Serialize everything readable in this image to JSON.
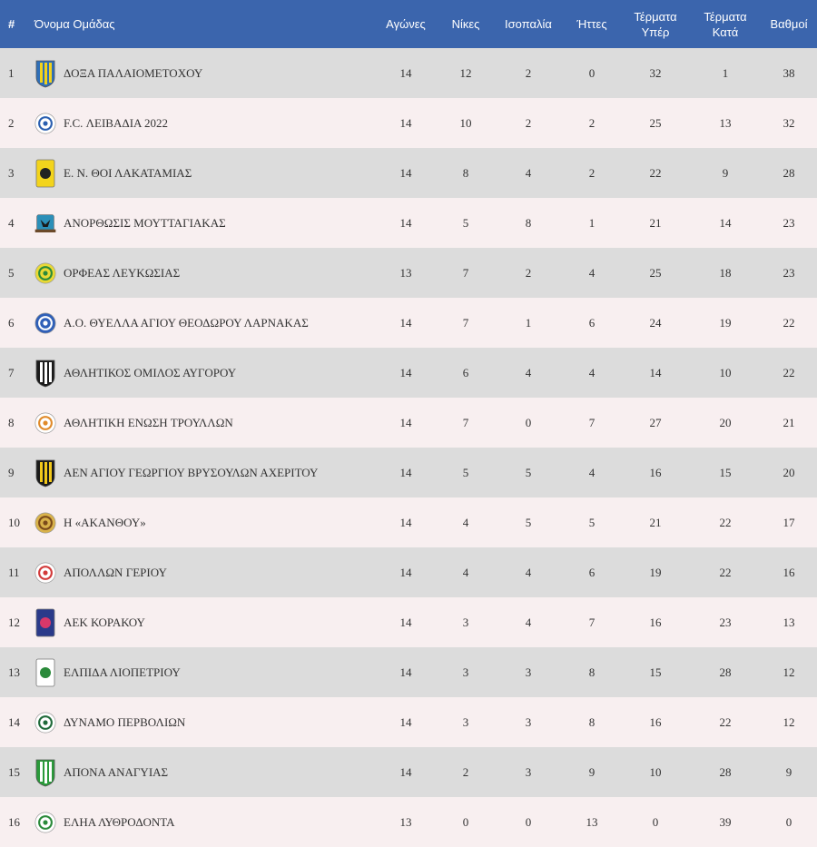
{
  "headers": {
    "rank": "#",
    "team": "Όνομα Ομάδας",
    "played": "Αγώνες",
    "wins": "Νίκες",
    "draws": "Ισοπαλία",
    "losses": "Ήττες",
    "goals_for_1": "Τέρματα",
    "goals_for_2": "Υπέρ",
    "goals_against_1": "Τέρματα",
    "goals_against_2": "Κατά",
    "points": "Βαθμοί"
  },
  "rows": [
    {
      "rank": "1",
      "team": "ΔΟΞΑ ΠΑΛΑΙΟΜΕΤΟΧΟΥ",
      "played": "14",
      "wins": "12",
      "draws": "2",
      "losses": "0",
      "gf": "32",
      "ga": "1",
      "pts": "38",
      "logo": "shield-stripes-icon",
      "c1": "#2f6fb8",
      "c2": "#f2d21b"
    },
    {
      "rank": "2",
      "team": "F.C. ΛΕΙΒΑΔΙΑ 2022",
      "played": "14",
      "wins": "10",
      "draws": "2",
      "losses": "2",
      "gf": "25",
      "ga": "13",
      "pts": "32",
      "logo": "round-crest-icon",
      "c1": "#ffffff",
      "c2": "#2a5fb0"
    },
    {
      "rank": "3",
      "team": "Ε. Ν. ΘΟΙ ΛΑΚΑΤΑΜΙΑΣ",
      "played": "14",
      "wins": "8",
      "draws": "4",
      "losses": "2",
      "gf": "22",
      "ga": "9",
      "pts": "28",
      "logo": "badge-icon",
      "c1": "#f3d41c",
      "c2": "#222222"
    },
    {
      "rank": "4",
      "team": "ΑΝΟΡΘΩΣΙΣ ΜΟΥΤΤΑΓΙΑΚΑΣ",
      "played": "14",
      "wins": "5",
      "draws": "8",
      "losses": "1",
      "gf": "21",
      "ga": "14",
      "pts": "23",
      "logo": "eagle-crest-icon",
      "c1": "#2b8fb8",
      "c2": "#1a1a1a"
    },
    {
      "rank": "5",
      "team": "ΟΡΦΕΑΣ ΛΕΥΚΩΣΙΑΣ",
      "played": "13",
      "wins": "7",
      "draws": "2",
      "losses": "4",
      "gf": "25",
      "ga": "18",
      "pts": "23",
      "logo": "round-crest-icon",
      "c1": "#e9d935",
      "c2": "#2a8a3a"
    },
    {
      "rank": "6",
      "team": "Α.Ο. ΘΥΕΛΛΑ ΑΓΙΟΥ ΘΕΟΔΩΡΟΥ ΛΑΡΝΑΚΑΣ",
      "played": "14",
      "wins": "7",
      "draws": "1",
      "losses": "6",
      "gf": "24",
      "ga": "19",
      "pts": "22",
      "logo": "round-crest-icon",
      "c1": "#2f5fb8",
      "c2": "#ffffff"
    },
    {
      "rank": "7",
      "team": "ΑΘΛΗΤΙΚΟΣ ΟΜΙΛΟΣ ΑΥΓΟΡΟΥ",
      "played": "14",
      "wins": "6",
      "draws": "4",
      "losses": "4",
      "gf": "14",
      "ga": "10",
      "pts": "22",
      "logo": "shield-stripes-icon",
      "c1": "#1a1a1a",
      "c2": "#ffffff"
    },
    {
      "rank": "8",
      "team": "ΑΘΛΗΤΙΚΗ ΕΝΩΣΗ ΤΡΟΥΛΛΩΝ",
      "played": "14",
      "wins": "7",
      "draws": "0",
      "losses": "7",
      "gf": "27",
      "ga": "20",
      "pts": "21",
      "logo": "round-crest-icon",
      "c1": "#ffffff",
      "c2": "#e08a2a"
    },
    {
      "rank": "9",
      "team": "ΑΕΝ ΑΓΙΟΥ ΓΕΩΡΓΙΟΥ ΒΡΥΣΟΥΛΩΝ ΑΧΕΡΙΤΟΥ",
      "played": "14",
      "wins": "5",
      "draws": "5",
      "losses": "4",
      "gf": "16",
      "ga": "15",
      "pts": "20",
      "logo": "shield-stripes-icon",
      "c1": "#1a1a1a",
      "c2": "#f2c81b"
    },
    {
      "rank": "10",
      "team": "Η «ΑΚΑΝΘΟΥ»",
      "played": "14",
      "wins": "4",
      "draws": "5",
      "losses": "5",
      "gf": "21",
      "ga": "22",
      "pts": "17",
      "logo": "round-crest-icon",
      "c1": "#d9b24a",
      "c2": "#7a4a1a"
    },
    {
      "rank": "11",
      "team": "ΑΠΟΛΛΩΝ ΓΕΡΙΟΥ",
      "played": "14",
      "wins": "4",
      "draws": "4",
      "losses": "6",
      "gf": "19",
      "ga": "22",
      "pts": "16",
      "logo": "round-crest-icon",
      "c1": "#ffffff",
      "c2": "#d23a3a"
    },
    {
      "rank": "12",
      "team": "ΑΕΚ ΚΟΡΑΚΟΥ",
      "played": "14",
      "wins": "3",
      "draws": "4",
      "losses": "7",
      "gf": "16",
      "ga": "23",
      "pts": "13",
      "logo": "badge-icon",
      "c1": "#2a3a8a",
      "c2": "#d8386a"
    },
    {
      "rank": "13",
      "team": "ΕΛΠΙΔΑ ΛΙΟΠΕΤΡΙΟΥ",
      "played": "14",
      "wins": "3",
      "draws": "3",
      "losses": "8",
      "gf": "15",
      "ga": "28",
      "pts": "12",
      "logo": "badge-icon",
      "c1": "#ffffff",
      "c2": "#2a8a3a"
    },
    {
      "rank": "14",
      "team": "ΔΥΝΑΜΟ ΠΕΡΒΟΛΙΩΝ",
      "played": "14",
      "wins": "3",
      "draws": "3",
      "losses": "8",
      "gf": "16",
      "ga": "22",
      "pts": "12",
      "logo": "round-crest-icon",
      "c1": "#ffffff",
      "c2": "#1f6a3a"
    },
    {
      "rank": "15",
      "team": "ΑΠΟΝΑ ΑΝΑΓΥΙΑΣ",
      "played": "14",
      "wins": "2",
      "draws": "3",
      "losses": "9",
      "gf": "10",
      "ga": "28",
      "pts": "9",
      "logo": "shield-stripes-icon",
      "c1": "#2a9a3a",
      "c2": "#ffffff"
    },
    {
      "rank": "16",
      "team": "ΕΛΗΑ ΛΥΘΡΟΔΟΝΤΑ",
      "played": "13",
      "wins": "0",
      "draws": "0",
      "losses": "13",
      "gf": "0",
      "ga": "39",
      "pts": "0",
      "logo": "round-crest-icon",
      "c1": "#ffffff",
      "c2": "#2a8a3a"
    }
  ]
}
